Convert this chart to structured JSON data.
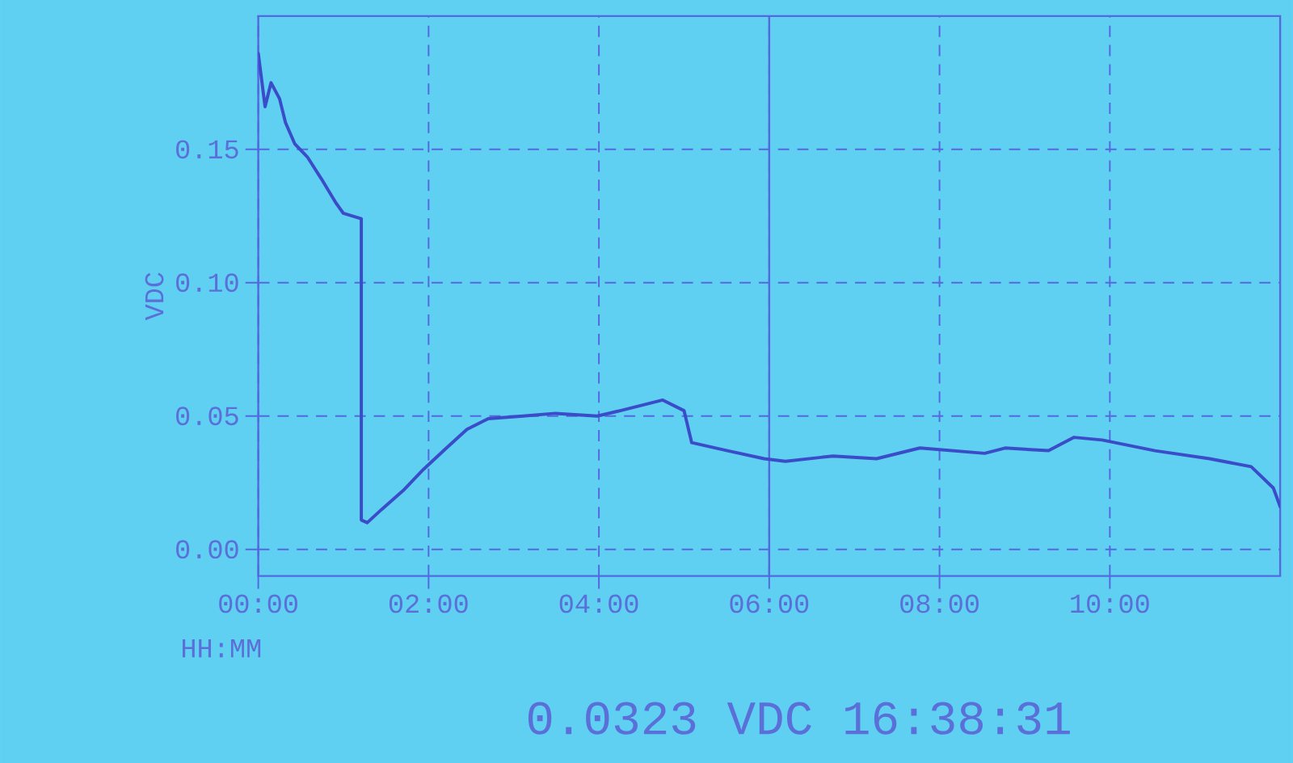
{
  "chart_data": {
    "type": "line",
    "xlabel": "HH:MM",
    "ylabel": "VDC",
    "x": [
      0,
      0.08,
      0.15,
      0.25,
      0.32,
      0.43,
      0.58,
      0.74,
      0.91,
      1.0,
      1.21,
      1.21,
      1.28,
      1.45,
      1.7,
      1.94,
      2.21,
      2.45,
      2.7,
      3.11,
      3.49,
      3.98,
      4.25,
      4.75,
      5.0,
      5.09,
      5.51,
      5.94,
      6.19,
      6.75,
      7.26,
      7.77,
      8.53,
      8.77,
      9.28,
      9.58,
      9.91,
      10.53,
      11.17,
      11.66,
      11.92,
      12.0
    ],
    "series": [
      {
        "color": "#3a4cc8",
        "values": [
          0.186,
          0.166,
          0.175,
          0.169,
          0.16,
          0.152,
          0.147,
          0.139,
          0.13,
          0.126,
          0.124,
          0.011,
          0.01,
          0.015,
          0.022,
          0.03,
          0.038,
          0.045,
          0.049,
          0.05,
          0.051,
          0.05,
          0.052,
          0.056,
          0.052,
          0.04,
          0.037,
          0.034,
          0.033,
          0.035,
          0.034,
          0.038,
          0.036,
          0.038,
          0.037,
          0.042,
          0.041,
          0.037,
          0.034,
          0.031,
          0.023,
          0.016
        ]
      }
    ],
    "xlim": [
      0,
      12
    ],
    "ylim": [
      -0.01,
      0.2
    ],
    "xticks": [
      {
        "value": 0,
        "label": "00:00"
      },
      {
        "value": 2,
        "label": "02:00"
      },
      {
        "value": 4,
        "label": "04:00"
      },
      {
        "value": 6,
        "label": "06:00"
      },
      {
        "value": 8,
        "label": "08:00"
      },
      {
        "value": 10,
        "label": "10:00"
      }
    ],
    "yticks": [
      {
        "value": 0,
        "label": "0.00"
      },
      {
        "value": 0.05,
        "label": "0.05"
      },
      {
        "value": 0.1,
        "label": "0.10"
      },
      {
        "value": 0.15,
        "label": "0.15"
      }
    ],
    "grid": true,
    "marker": "none",
    "line_style": "solid",
    "ref_lines": [
      {
        "axis": "x",
        "value": 6
      }
    ],
    "annotations": [
      "0.0323 VDC 16:38:31"
    ]
  }
}
